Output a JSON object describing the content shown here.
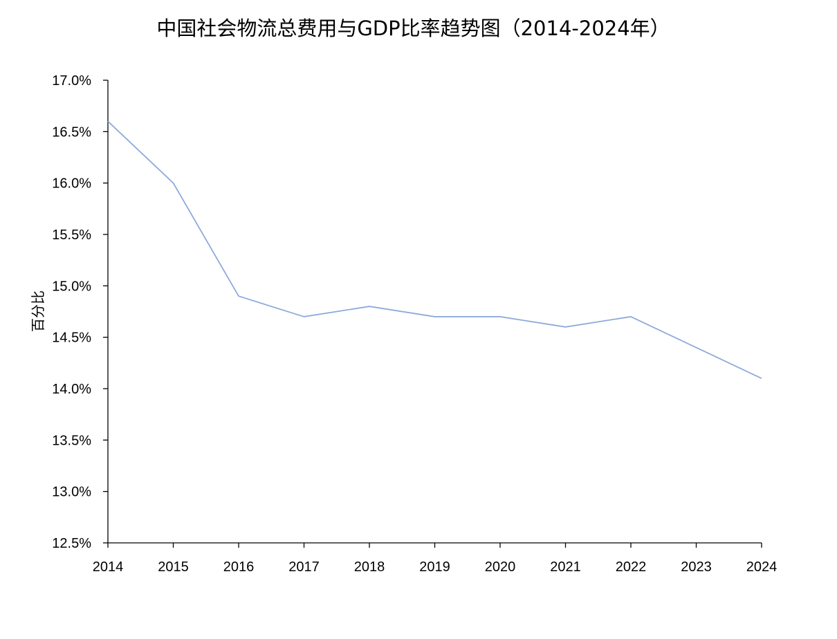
{
  "chart_data": {
    "type": "line",
    "title": "中国社会物流总费用与GDP比率趋势图（2014-2024年）",
    "xlabel": "",
    "ylabel": "百分比",
    "x": [
      2014,
      2015,
      2016,
      2017,
      2018,
      2019,
      2020,
      2021,
      2022,
      2023,
      2024
    ],
    "x_tick_labels": [
      "2014",
      "2015",
      "2016",
      "2017",
      "2018",
      "2019",
      "2020",
      "2021",
      "2022",
      "2023",
      "2024"
    ],
    "series": [
      {
        "values": [
          16.6,
          16.0,
          14.9,
          14.7,
          14.8,
          14.7,
          14.7,
          14.6,
          14.7,
          14.4,
          14.1
        ],
        "color": "#8eaadb"
      }
    ],
    "ylim": [
      12.5,
      17.0
    ],
    "y_ticks": [
      12.5,
      13.0,
      13.5,
      14.0,
      14.5,
      15.0,
      15.5,
      16.0,
      16.5,
      17.0
    ],
    "y_tick_labels": [
      "12.5%",
      "13.0%",
      "13.5%",
      "14.0%",
      "14.5%",
      "15.0%",
      "15.5%",
      "16.0%",
      "16.5%",
      "17.0%"
    ],
    "grid": false,
    "legend": "none"
  }
}
